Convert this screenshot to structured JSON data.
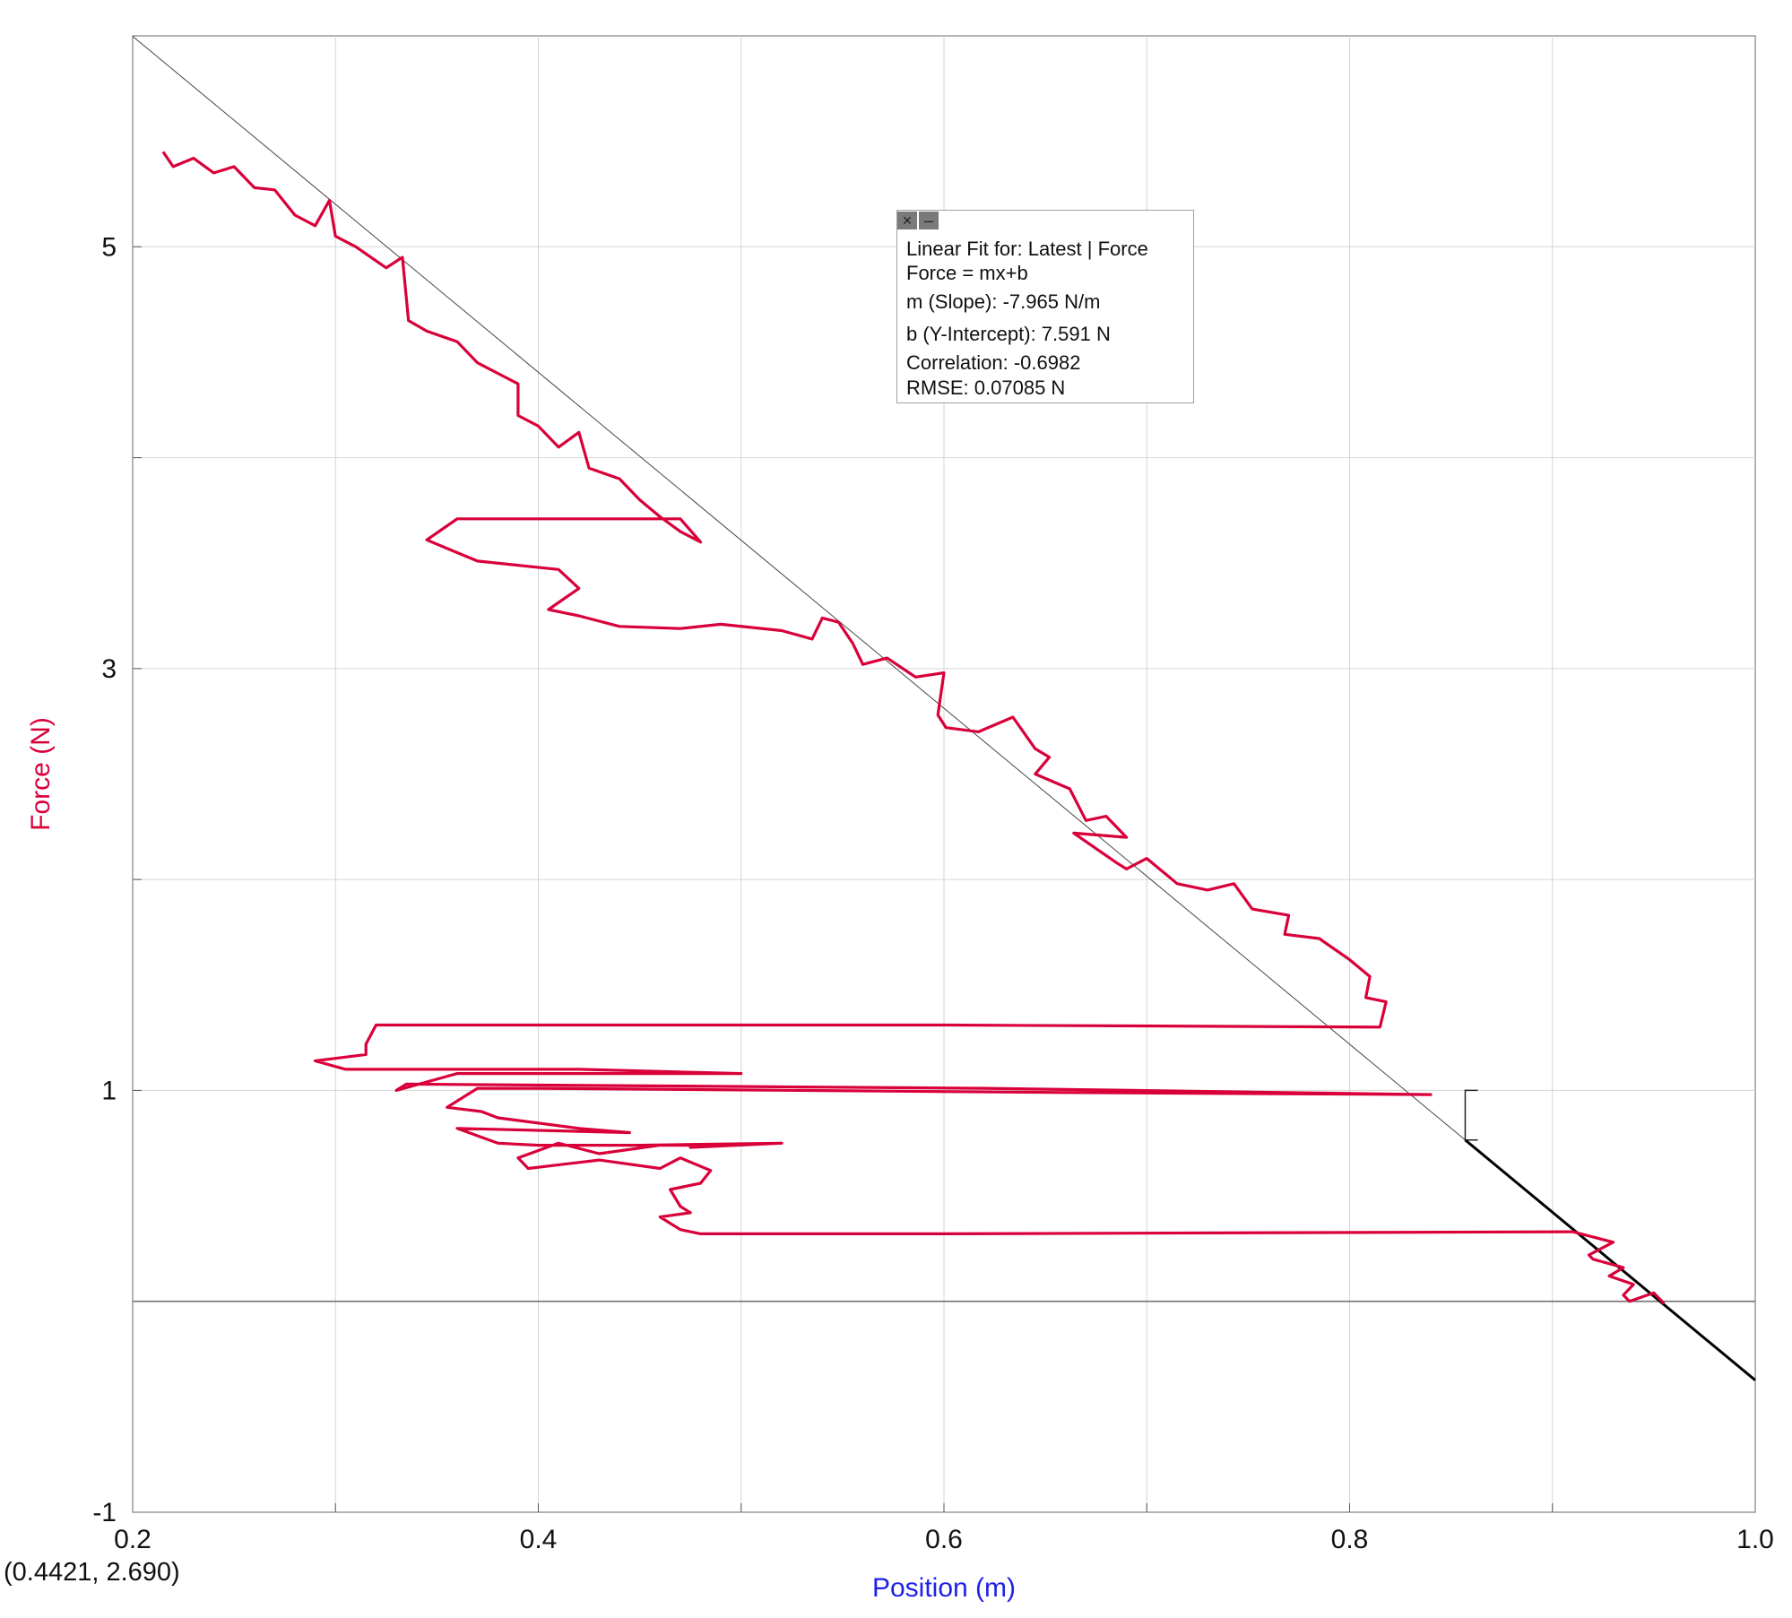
{
  "colors": {
    "series": "#d9003a",
    "fit_line": "#000000",
    "grid": "#d6d6d6",
    "axis_title_y": "#d9003a",
    "axis_title_x": "#1e20e8"
  },
  "chart_data": {
    "type": "line",
    "xlabel": "Position (m)",
    "ylabel": "Force (N)",
    "xlim": [
      0.2,
      1.0
    ],
    "ylim": [
      -1,
      6
    ],
    "x_ticks": [
      0.2,
      0.4,
      0.6,
      0.8,
      1.0
    ],
    "x_tick_labels": [
      "0.2",
      "0.4",
      "0.6",
      "0.8",
      "1.0"
    ],
    "y_ticks": [
      -1,
      1,
      3,
      5
    ],
    "y_tick_labels": [
      "-1",
      "1",
      "3",
      "5"
    ],
    "grid": true,
    "series": [
      {
        "points": [
          [
            0.215,
            5.45
          ],
          [
            0.22,
            5.38
          ],
          [
            0.23,
            5.42
          ],
          [
            0.24,
            5.35
          ],
          [
            0.25,
            5.38
          ],
          [
            0.26,
            5.28
          ],
          [
            0.27,
            5.27
          ],
          [
            0.28,
            5.15
          ],
          [
            0.29,
            5.1
          ],
          [
            0.297,
            5.22
          ],
          [
            0.3,
            5.05
          ],
          [
            0.31,
            5.0
          ],
          [
            0.325,
            4.9
          ],
          [
            0.333,
            4.95
          ],
          [
            0.336,
            4.65
          ],
          [
            0.345,
            4.6
          ],
          [
            0.36,
            4.55
          ],
          [
            0.37,
            4.45
          ],
          [
            0.38,
            4.4
          ],
          [
            0.39,
            4.35
          ],
          [
            0.39,
            4.2
          ],
          [
            0.4,
            4.15
          ],
          [
            0.41,
            4.05
          ],
          [
            0.42,
            4.12
          ],
          [
            0.425,
            3.95
          ],
          [
            0.44,
            3.9
          ],
          [
            0.45,
            3.8
          ],
          [
            0.46,
            3.72
          ],
          [
            0.47,
            3.65
          ],
          [
            0.48,
            3.6
          ],
          [
            0.47,
            3.71
          ],
          [
            0.36,
            3.71
          ],
          [
            0.345,
            3.61
          ],
          [
            0.36,
            3.55
          ],
          [
            0.37,
            3.51
          ],
          [
            0.41,
            3.47
          ],
          [
            0.42,
            3.38
          ],
          [
            0.405,
            3.28
          ],
          [
            0.42,
            3.25
          ],
          [
            0.44,
            3.2
          ],
          [
            0.47,
            3.19
          ],
          [
            0.49,
            3.21
          ],
          [
            0.52,
            3.18
          ],
          [
            0.535,
            3.14
          ],
          [
            0.54,
            3.24
          ],
          [
            0.548,
            3.22
          ],
          [
            0.555,
            3.12
          ],
          [
            0.56,
            3.02
          ],
          [
            0.572,
            3.05
          ],
          [
            0.586,
            2.96
          ],
          [
            0.6,
            2.98
          ],
          [
            0.597,
            2.78
          ],
          [
            0.601,
            2.72
          ],
          [
            0.617,
            2.7
          ],
          [
            0.634,
            2.77
          ],
          [
            0.645,
            2.62
          ],
          [
            0.652,
            2.58
          ],
          [
            0.645,
            2.5
          ],
          [
            0.662,
            2.43
          ],
          [
            0.67,
            2.28
          ],
          [
            0.68,
            2.3
          ],
          [
            0.69,
            2.2
          ],
          [
            0.664,
            2.22
          ],
          [
            0.685,
            2.08
          ],
          [
            0.69,
            2.05
          ],
          [
            0.7,
            2.1
          ],
          [
            0.715,
            1.98
          ],
          [
            0.73,
            1.95
          ],
          [
            0.743,
            1.98
          ],
          [
            0.752,
            1.86
          ],
          [
            0.77,
            1.83
          ],
          [
            0.768,
            1.74
          ],
          [
            0.785,
            1.72
          ],
          [
            0.8,
            1.62
          ],
          [
            0.81,
            1.54
          ],
          [
            0.808,
            1.44
          ],
          [
            0.818,
            1.42
          ],
          [
            0.815,
            1.3
          ],
          [
            0.6,
            1.31
          ],
          [
            0.32,
            1.31
          ],
          [
            0.315,
            1.22
          ],
          [
            0.315,
            1.17
          ],
          [
            0.29,
            1.14
          ],
          [
            0.305,
            1.1
          ],
          [
            0.42,
            1.1
          ],
          [
            0.5,
            1.08
          ],
          [
            0.36,
            1.08
          ],
          [
            0.33,
            1.0
          ],
          [
            0.335,
            1.03
          ],
          [
            0.62,
            1.01
          ],
          [
            0.84,
            0.98
          ],
          [
            0.66,
            0.99
          ],
          [
            0.4,
            1.01
          ],
          [
            0.37,
            1.01
          ],
          [
            0.355,
            0.92
          ],
          [
            0.372,
            0.9
          ],
          [
            0.38,
            0.87
          ],
          [
            0.42,
            0.82
          ],
          [
            0.445,
            0.8
          ],
          [
            0.36,
            0.82
          ],
          [
            0.38,
            0.75
          ],
          [
            0.4,
            0.74
          ],
          [
            0.45,
            0.74
          ],
          [
            0.52,
            0.75
          ],
          [
            0.475,
            0.73
          ],
          [
            0.49,
            0.74
          ],
          [
            0.46,
            0.74
          ],
          [
            0.43,
            0.7
          ],
          [
            0.41,
            0.75
          ],
          [
            0.39,
            0.68
          ],
          [
            0.395,
            0.63
          ],
          [
            0.43,
            0.67
          ],
          [
            0.46,
            0.63
          ],
          [
            0.47,
            0.68
          ],
          [
            0.485,
            0.62
          ],
          [
            0.48,
            0.56
          ],
          [
            0.465,
            0.53
          ],
          [
            0.47,
            0.45
          ],
          [
            0.475,
            0.42
          ],
          [
            0.46,
            0.4
          ],
          [
            0.47,
            0.34
          ],
          [
            0.48,
            0.32
          ],
          [
            0.5,
            0.32
          ],
          [
            0.6,
            0.32
          ],
          [
            0.91,
            0.33
          ],
          [
            0.93,
            0.28
          ],
          [
            0.918,
            0.22
          ],
          [
            0.92,
            0.2
          ],
          [
            0.935,
            0.16
          ],
          [
            0.928,
            0.12
          ],
          [
            0.94,
            0.08
          ],
          [
            0.935,
            0.03
          ],
          [
            0.938,
            0.0
          ],
          [
            0.95,
            0.04
          ],
          [
            0.955,
            -0.01
          ]
        ]
      }
    ],
    "fit": {
      "slope": -7.965,
      "intercept": 7.591,
      "x_range": [
        0.2,
        1.0
      ],
      "bold_range": [
        0.857,
        1.0
      ]
    },
    "fit_box": {
      "line1": "Linear Fit for: Latest | Force",
      "line2": "Force = mx+b",
      "line3": "m (Slope): -7.965 N/m",
      "line4": "b (Y-Intercept): 7.591 N",
      "line5": "Correlation: -0.6982",
      "line6": "RMSE: 0.07085 N"
    },
    "cursor_readout": "(0.4421, 2.690)"
  },
  "icons": {
    "close": "close-icon",
    "minimize": "minimize-icon"
  }
}
